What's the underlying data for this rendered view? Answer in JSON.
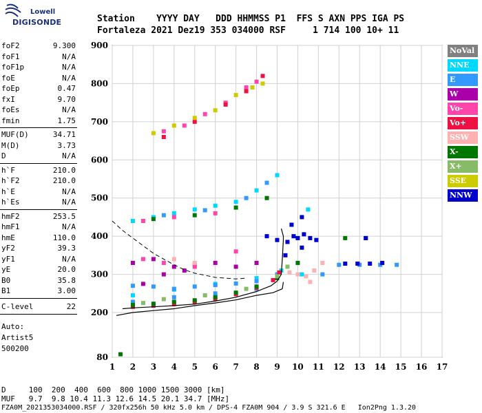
{
  "logo": {
    "line1": "Lowell",
    "line2": "DIGISONDE"
  },
  "header": {
    "line1": "Station    YYYY DAY   DDD HHMMSS P1  FFS S AXN PPS IGA PS",
    "line2": "Fortaleza 2021 Dez19 353 034000 RSF     1 714 100 10+ 11"
  },
  "params_group1": [
    {
      "name": "foF2",
      "value": "9.300"
    },
    {
      "name": "foF1",
      "value": "N/A"
    },
    {
      "name": "foF1p",
      "value": "N/A"
    },
    {
      "name": "foE",
      "value": "N/A"
    },
    {
      "name": "foEp",
      "value": "0.47"
    },
    {
      "name": "fxI",
      "value": "9.70"
    },
    {
      "name": "foEs",
      "value": "N/A"
    },
    {
      "name": "fmin",
      "value": "1.75"
    }
  ],
  "params_group2": [
    {
      "name": "MUF(D)",
      "value": "34.71"
    },
    {
      "name": "M(D)",
      "value": "3.73"
    },
    {
      "name": "D",
      "value": "N/A"
    }
  ],
  "params_group3": [
    {
      "name": "h`F",
      "value": "210.0"
    },
    {
      "name": "h`F2",
      "value": "210.0"
    },
    {
      "name": "h`E",
      "value": "N/A"
    },
    {
      "name": "h`Es",
      "value": "N/A"
    }
  ],
  "params_group4": [
    {
      "name": "hmF2",
      "value": "253.5"
    },
    {
      "name": "hmF1",
      "value": "N/A"
    },
    {
      "name": "hmE",
      "value": "110.0"
    },
    {
      "name": "yF2",
      "value": "39.3"
    },
    {
      "name": "yF1",
      "value": "N/A"
    },
    {
      "name": "yE",
      "value": "20.0"
    },
    {
      "name": "B0",
      "value": "35.8"
    },
    {
      "name": "B1",
      "value": "3.00"
    }
  ],
  "clevel": {
    "name": "C-level",
    "value": "22"
  },
  "auto": {
    "line1": "Auto:",
    "line2": "Artist5",
    "line3": "500200"
  },
  "legend": [
    {
      "label": "NoVal",
      "bg": "#808080",
      "fg": "#ffffff"
    },
    {
      "label": "NNE",
      "bg": "#00d8ff",
      "fg": "#ffffff"
    },
    {
      "label": "E",
      "bg": "#3399ff",
      "fg": "#ffffff"
    },
    {
      "label": "W",
      "bg": "#aa00aa",
      "fg": "#ffffff"
    },
    {
      "label": "Vo-",
      "bg": "#ff44aa",
      "fg": "#ffffff"
    },
    {
      "label": "Vo+",
      "bg": "#ee1144",
      "fg": "#ffffff"
    },
    {
      "label": "SSW",
      "bg": "#ffb0b0",
      "fg": "#ffffff"
    },
    {
      "label": "X-",
      "bg": "#007700",
      "fg": "#ffffff"
    },
    {
      "label": "X+",
      "bg": "#88bb66",
      "fg": "#ffffff"
    },
    {
      "label": "SSE",
      "bg": "#cccc00",
      "fg": "#ffffff"
    },
    {
      "label": "NNW",
      "bg": "#0000cc",
      "fg": "#ffffff"
    }
  ],
  "footer": {
    "line1": "D     100  200  400  600  800 1000 1500 3000 [km]",
    "line2": "MUF   9.7  9.8 10.4 11.3 12.6 14.5 20.1 34.7 [MHz]",
    "line3": "FZA0M_2021353034000.RSF / 320fx256h 50 kHz 5.0 km / DPS-4 FZA0M 904 / 3.9 S 321.6 E   Ion2Png 1.3.20"
  },
  "chart_data": {
    "type": "scatter",
    "title": "",
    "xlabel": "",
    "ylabel": "",
    "xlim": [
      1,
      17
    ],
    "ylim": [
      80,
      900
    ],
    "x_ticks": [
      1,
      2,
      3,
      4,
      5,
      6,
      7,
      8,
      9,
      10,
      11,
      12,
      13,
      14,
      15,
      16,
      17
    ],
    "y_ticks": [
      80,
      200,
      300,
      400,
      500,
      600,
      700,
      800,
      900
    ],
    "grid": true,
    "series": [
      {
        "name": "NoVal",
        "color": "#808080",
        "points": []
      },
      {
        "name": "NNE",
        "color": "#00d8ff",
        "points": [
          [
            2.0,
            440
          ],
          [
            3.0,
            450
          ],
          [
            4.0,
            460
          ],
          [
            5.0,
            470
          ],
          [
            6.0,
            480
          ],
          [
            7.0,
            490
          ],
          [
            8.0,
            520
          ],
          [
            9.0,
            560
          ],
          [
            2.0,
            245
          ],
          [
            4.0,
            260
          ],
          [
            6.0,
            275
          ],
          [
            8.0,
            290
          ],
          [
            9.2,
            310
          ],
          [
            10.5,
            470
          ],
          [
            10.2,
            300
          ]
        ]
      },
      {
        "name": "E",
        "color": "#3399ff",
        "points": [
          [
            2.0,
            270
          ],
          [
            3.0,
            268
          ],
          [
            4.0,
            262
          ],
          [
            5.0,
            268
          ],
          [
            6.0,
            272
          ],
          [
            7.0,
            276
          ],
          [
            8.0,
            282
          ],
          [
            9.0,
            300
          ],
          [
            2.0,
            228
          ],
          [
            4.0,
            240
          ],
          [
            6.0,
            250
          ],
          [
            8.0,
            262
          ],
          [
            3.5,
            455
          ],
          [
            5.5,
            468
          ],
          [
            7.5,
            500
          ],
          [
            8.5,
            540
          ],
          [
            12.0,
            325
          ],
          [
            13.0,
            325
          ],
          [
            14.0,
            325
          ],
          [
            14.8,
            325
          ],
          [
            11.2,
            300
          ]
        ]
      },
      {
        "name": "W",
        "color": "#aa00aa",
        "points": [
          [
            2.0,
            330
          ],
          [
            3.0,
            340
          ],
          [
            4.0,
            320
          ],
          [
            5.0,
            325
          ],
          [
            6.0,
            330
          ],
          [
            7.0,
            320
          ],
          [
            8.0,
            330
          ],
          [
            2.5,
            275
          ],
          [
            3.5,
            300
          ],
          [
            4.5,
            310
          ]
        ]
      },
      {
        "name": "Vo-",
        "color": "#ff44aa",
        "points": [
          [
            3.5,
            675
          ],
          [
            4.5,
            690
          ],
          [
            5.5,
            720
          ],
          [
            6.5,
            750
          ],
          [
            7.5,
            790
          ],
          [
            8.0,
            805
          ],
          [
            2.5,
            440
          ],
          [
            4.0,
            450
          ],
          [
            6.0,
            460
          ],
          [
            2.5,
            340
          ],
          [
            3.5,
            330
          ],
          [
            5.0,
            320
          ],
          [
            7.0,
            360
          ]
        ]
      },
      {
        "name": "Vo+",
        "color": "#ee1144",
        "points": [
          [
            2.0,
            215
          ],
          [
            3.0,
            218
          ],
          [
            4.0,
            222
          ],
          [
            5.0,
            228
          ],
          [
            6.0,
            236
          ],
          [
            7.0,
            248
          ],
          [
            8.0,
            265
          ],
          [
            8.8,
            285
          ],
          [
            9.1,
            305
          ],
          [
            3.5,
            660
          ],
          [
            5.0,
            700
          ],
          [
            6.5,
            745
          ],
          [
            7.5,
            780
          ],
          [
            8.3,
            820
          ]
        ]
      },
      {
        "name": "SSW",
        "color": "#ffb0b0",
        "points": [
          [
            9.6,
            305
          ],
          [
            10.0,
            300
          ],
          [
            10.4,
            295
          ],
          [
            10.8,
            310
          ],
          [
            11.2,
            330
          ],
          [
            10.6,
            280
          ],
          [
            4.0,
            340
          ],
          [
            5.0,
            330
          ]
        ]
      },
      {
        "name": "X-",
        "color": "#007700",
        "points": [
          [
            2.0,
            220
          ],
          [
            3.0,
            223
          ],
          [
            4.0,
            228
          ],
          [
            5.0,
            232
          ],
          [
            6.0,
            240
          ],
          [
            7.0,
            252
          ],
          [
            8.0,
            268
          ],
          [
            9.0,
            290
          ],
          [
            3.0,
            445
          ],
          [
            5.0,
            455
          ],
          [
            7.0,
            475
          ],
          [
            8.5,
            500
          ],
          [
            1.4,
            88
          ],
          [
            12.3,
            395
          ],
          [
            13.3,
            395
          ],
          [
            10.0,
            330
          ]
        ]
      },
      {
        "name": "X+",
        "color": "#88bb66",
        "points": [
          [
            3.5,
            235
          ],
          [
            5.5,
            245
          ],
          [
            7.5,
            262
          ],
          [
            9.0,
            295
          ],
          [
            2.5,
            225
          ],
          [
            9.5,
            320
          ]
        ]
      },
      {
        "name": "SSE",
        "color": "#cccc00",
        "points": [
          [
            3.0,
            670
          ],
          [
            4.0,
            690
          ],
          [
            5.0,
            710
          ],
          [
            6.0,
            730
          ],
          [
            7.0,
            770
          ],
          [
            7.8,
            790
          ],
          [
            8.3,
            800
          ]
        ]
      },
      {
        "name": "NNW",
        "color": "#0000cc",
        "points": [
          [
            8.5,
            400
          ],
          [
            9.0,
            390
          ],
          [
            9.5,
            385
          ],
          [
            9.8,
            400
          ],
          [
            10.0,
            395
          ],
          [
            10.3,
            405
          ],
          [
            10.6,
            395
          ],
          [
            10.9,
            390
          ],
          [
            9.7,
            430
          ],
          [
            10.2,
            450
          ],
          [
            12.3,
            328
          ],
          [
            12.9,
            328
          ],
          [
            13.5,
            328
          ],
          [
            14.1,
            330
          ],
          [
            9.4,
            350
          ],
          [
            10.2,
            370
          ],
          [
            13.3,
            395
          ]
        ]
      }
    ],
    "profile_curve": [
      [
        1.2,
        192
      ],
      [
        2.0,
        200
      ],
      [
        3.0,
        205
      ],
      [
        4.0,
        210
      ],
      [
        5.0,
        218
      ],
      [
        6.0,
        225
      ],
      [
        7.0,
        233
      ],
      [
        8.0,
        245
      ],
      [
        8.8,
        252
      ],
      [
        9.25,
        262
      ],
      [
        9.3,
        280
      ]
    ],
    "dashed_curve": [
      [
        1.0,
        440
      ],
      [
        1.5,
        415
      ],
      [
        2.0,
        395
      ],
      [
        2.5,
        375
      ],
      [
        3.0,
        355
      ],
      [
        3.5,
        340
      ],
      [
        4.0,
        325
      ],
      [
        4.5,
        312
      ],
      [
        5.0,
        303
      ],
      [
        6.0,
        292
      ],
      [
        7.0,
        288
      ],
      [
        7.5,
        290
      ]
    ],
    "trace_curve": [
      [
        1.5,
        210
      ],
      [
        2.0,
        212
      ],
      [
        3.0,
        215
      ],
      [
        4.0,
        218
      ],
      [
        5.0,
        222
      ],
      [
        6.0,
        230
      ],
      [
        7.0,
        240
      ],
      [
        8.0,
        255
      ],
      [
        8.7,
        270
      ],
      [
        9.0,
        282
      ],
      [
        9.2,
        300
      ],
      [
        9.25,
        340
      ],
      [
        9.3,
        390
      ],
      [
        9.3,
        400
      ],
      [
        9.2,
        420
      ]
    ]
  }
}
